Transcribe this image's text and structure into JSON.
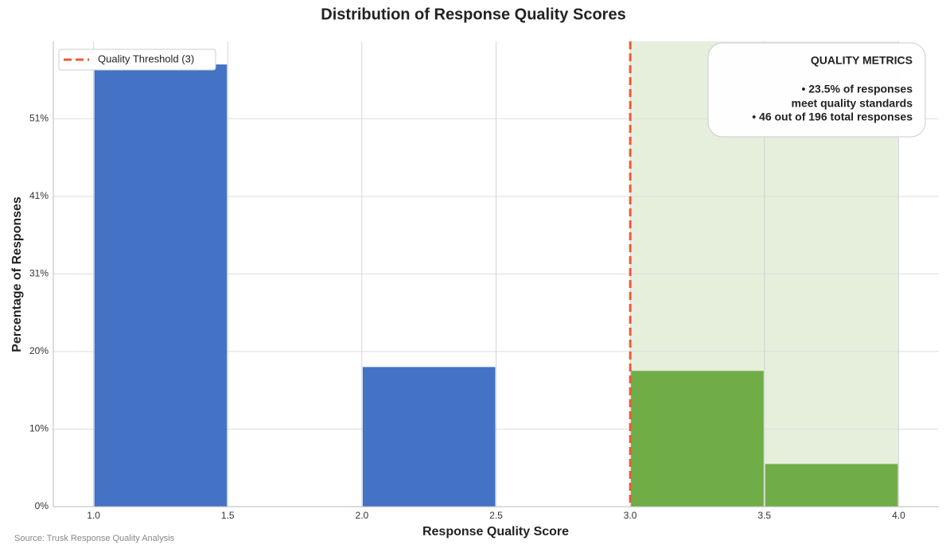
{
  "chart_data": {
    "type": "histogram",
    "title": "Distribution of Response Quality Scores",
    "x_label": "Response Quality Score",
    "y_label": "Percentage of Responses",
    "bins": [
      1.0,
      1.5,
      2.0,
      2.5,
      3.0,
      3.5,
      4.0
    ],
    "values": [
      58.16,
      0,
      18.37,
      0,
      17.86,
      5.61
    ],
    "colors": [
      "#4472c4",
      "#4472c4",
      "#4472c4",
      "#4472c4",
      "#70ad47",
      "#70ad47"
    ],
    "xlim": [
      0.85,
      4.15
    ],
    "ylim": [
      0,
      61.2
    ],
    "xticks": [
      {
        "value": 1,
        "label": "1.0"
      },
      1.5,
      {
        "value": 2,
        "label": "2.0"
      },
      2.5,
      {
        "value": 3,
        "label": "3.0"
      },
      3.5,
      {
        "value": 4,
        "label": "4.0"
      }
    ],
    "yticks": [
      {
        "value": 0,
        "label": "0%"
      },
      {
        "value": 10.204,
        "label": "10%"
      },
      {
        "value": 20.408,
        "label": "20%"
      },
      {
        "value": 30.612,
        "label": "31%"
      },
      {
        "value": 40.816,
        "label": "41%"
      },
      {
        "value": 51.02,
        "label": "51%"
      }
    ],
    "grid": true,
    "threshold": {
      "value": 3,
      "label": "Quality Threshold (3)",
      "color": "#ee5a36"
    },
    "shade_range": [
      3,
      4
    ],
    "shade_color": "#e6efdc",
    "legend_position": "upper left",
    "annotation": [
      "QUALITY METRICS",
      "• 23.5% of responses",
      "meet quality standards",
      "• 46 out of 196 total responses"
    ],
    "source": "Source: Trusk Response Quality Analysis"
  }
}
